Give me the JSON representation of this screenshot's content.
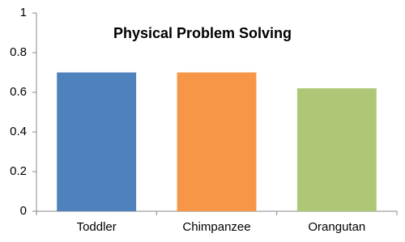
{
  "chart_data": {
    "type": "bar",
    "title": "Physical Problem Solving",
    "categories": [
      "Toddler",
      "Chimpanzee",
      "Orangutan"
    ],
    "values": [
      0.7,
      0.7,
      0.62
    ],
    "colors": [
      "#4f81bd",
      "#f79646",
      "#9bbb59"
    ],
    "ylim": [
      0,
      1
    ],
    "yticks": [
      0,
      0.2,
      0.4,
      0.6,
      0.8,
      1
    ],
    "grid": false
  }
}
